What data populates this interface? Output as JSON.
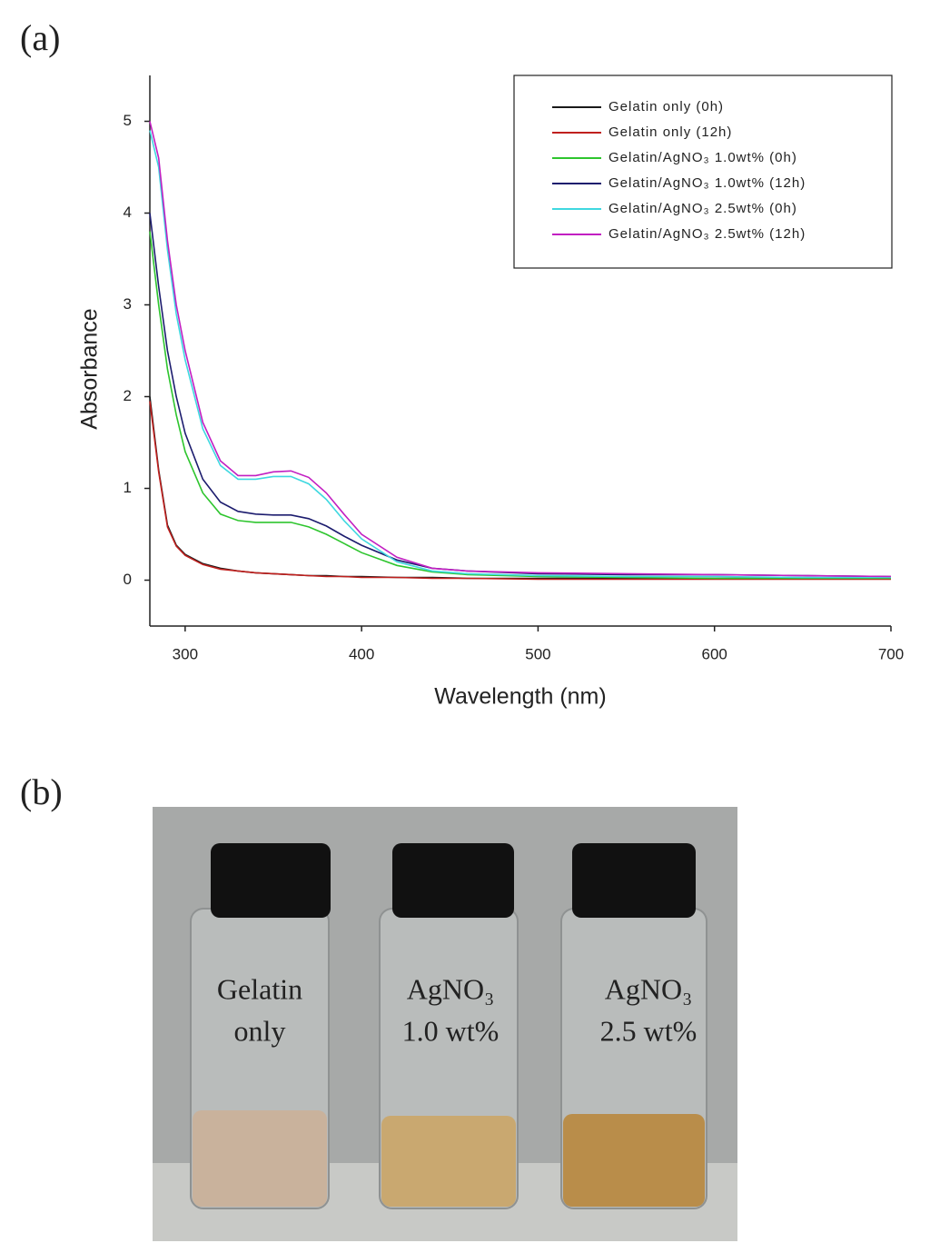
{
  "chart_data": {
    "type": "line",
    "xlabel": "Wavelength (nm)",
    "ylabel": "Absorbance",
    "xlim": [
      280,
      700
    ],
    "ylim": [
      -0.5,
      5.5
    ],
    "xticks": [
      300,
      400,
      500,
      600,
      700
    ],
    "yticks": [
      0,
      1,
      2,
      3,
      4,
      5
    ],
    "legend": "upper right",
    "x": [
      280,
      285,
      290,
      295,
      300,
      310,
      320,
      330,
      340,
      350,
      360,
      370,
      380,
      390,
      400,
      420,
      440,
      460,
      500,
      550,
      600,
      650,
      700
    ],
    "series": [
      {
        "name": "Gelatin only (0h)",
        "color": "#1a1a1a",
        "values": [
          2.0,
          1.2,
          0.6,
          0.38,
          0.28,
          0.18,
          0.13,
          0.1,
          0.08,
          0.07,
          0.06,
          0.05,
          0.05,
          0.04,
          0.04,
          0.03,
          0.03,
          0.02,
          0.02,
          0.02,
          0.02,
          0.02,
          0.02
        ]
      },
      {
        "name": "Gelatin only (12h)",
        "color": "#c0201e",
        "values": [
          1.95,
          1.18,
          0.58,
          0.37,
          0.27,
          0.17,
          0.12,
          0.1,
          0.08,
          0.07,
          0.06,
          0.05,
          0.04,
          0.04,
          0.03,
          0.03,
          0.02,
          0.02,
          0.01,
          0.01,
          0.01,
          0.01,
          0.01
        ]
      },
      {
        "name": "Gelatin/AgNO₃ 1.0wt% (0h)",
        "color": "#2ec52e",
        "values": [
          3.8,
          3.0,
          2.3,
          1.8,
          1.4,
          0.95,
          0.72,
          0.65,
          0.63,
          0.63,
          0.63,
          0.58,
          0.5,
          0.4,
          0.3,
          0.16,
          0.09,
          0.06,
          0.04,
          0.03,
          0.02,
          0.02,
          0.02
        ]
      },
      {
        "name": "Gelatin/AgNO₃ 1.0wt% (12h)",
        "color": "#1c1c6e",
        "values": [
          4.0,
          3.2,
          2.5,
          2.0,
          1.6,
          1.1,
          0.85,
          0.75,
          0.72,
          0.71,
          0.71,
          0.67,
          0.59,
          0.48,
          0.38,
          0.22,
          0.13,
          0.1,
          0.07,
          0.06,
          0.06,
          0.05,
          0.04
        ]
      },
      {
        "name": "Gelatin/AgNO₃ 2.5wt% (0h)",
        "color": "#3fd8e0",
        "values": [
          4.9,
          4.5,
          3.6,
          2.9,
          2.4,
          1.65,
          1.25,
          1.1,
          1.1,
          1.13,
          1.13,
          1.05,
          0.88,
          0.65,
          0.45,
          0.2,
          0.1,
          0.07,
          0.05,
          0.04,
          0.04,
          0.03,
          0.03
        ]
      },
      {
        "name": "Gelatin/AgNO₃ 2.5wt% (12h)",
        "color": "#c21fc2",
        "values": [
          5.0,
          4.6,
          3.7,
          3.0,
          2.5,
          1.72,
          1.3,
          1.14,
          1.14,
          1.18,
          1.19,
          1.12,
          0.95,
          0.72,
          0.5,
          0.25,
          0.13,
          0.1,
          0.08,
          0.07,
          0.06,
          0.05,
          0.04
        ]
      }
    ]
  },
  "panel_labels": [
    "(a)",
    "(b)"
  ],
  "photo": {
    "vial_labels": [
      [
        "Gelatin",
        "only"
      ],
      [
        "AgNO₃",
        "1.0 wt%"
      ],
      [
        "AgNO₃",
        "2.5 wt%"
      ]
    ]
  }
}
